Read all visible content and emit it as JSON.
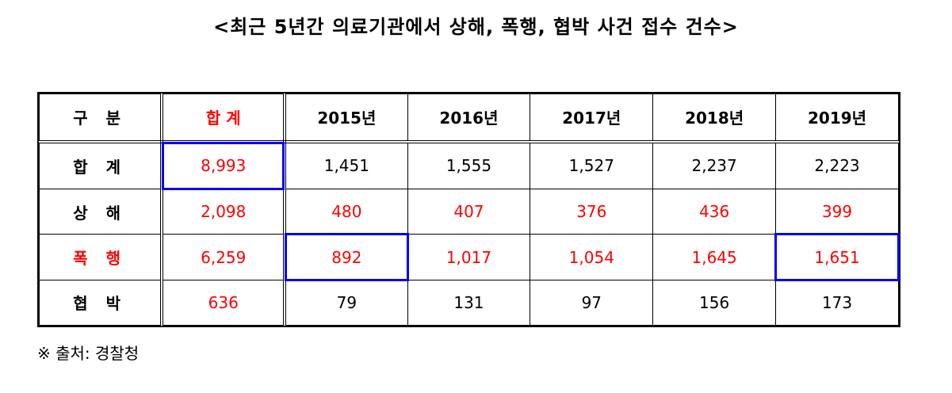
{
  "title": "<최근 5년간 의료기관에서 상해, 폭행, 협박 사건 접수 건수>",
  "table": {
    "header": {
      "label": "구 분",
      "total": "합 계",
      "years": [
        "2015년",
        "2016년",
        "2017년",
        "2018년",
        "2019년"
      ]
    },
    "rows": [
      {
        "label": "합 계",
        "total": "8,993",
        "values": [
          "1,451",
          "1,555",
          "1,527",
          "2,237",
          "2,223"
        ]
      },
      {
        "label": "상 해",
        "total": "2,098",
        "values": [
          "480",
          "407",
          "376",
          "436",
          "399"
        ]
      },
      {
        "label": "폭 행",
        "total": "6,259",
        "values": [
          "892",
          "1,017",
          "1,054",
          "1,645",
          "1,651"
        ]
      },
      {
        "label": "협 박",
        "total": "636",
        "values": [
          "79",
          "131",
          "97",
          "156",
          "173"
        ]
      }
    ]
  },
  "footnote": "※ 출처: 경찰청",
  "colors": {
    "emphasis_text": "#ff0000",
    "highlight_border": "#0000ff"
  }
}
